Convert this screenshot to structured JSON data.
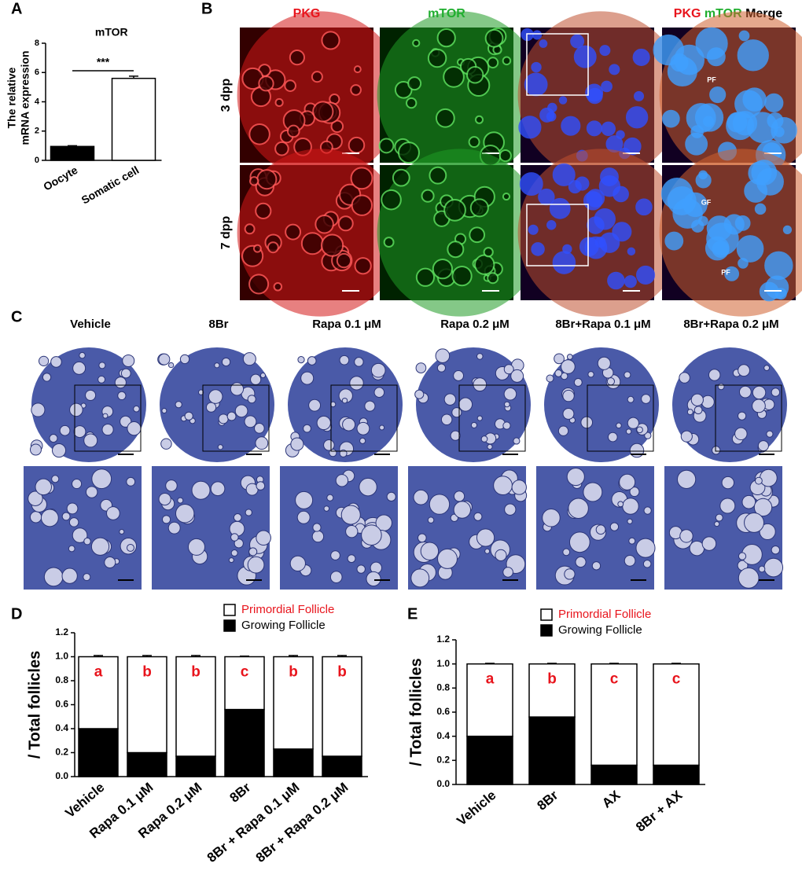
{
  "panel_labels": [
    "A",
    "B",
    "C",
    "D",
    "E"
  ],
  "figure_b": {
    "column_titles": [
      "PKG",
      "mTOR"
    ],
    "merge_title": [
      "PKG",
      "mTOR",
      "Merge"
    ],
    "row_labels": [
      "3 dpp",
      "7 dpp"
    ],
    "annotations": [
      "PF",
      "GF",
      "PF"
    ]
  },
  "figure_c": {
    "column_titles": [
      "Vehicle",
      "8Br",
      "Rapa 0.1 μM",
      "Rapa 0.2 μM",
      "8Br+Rapa 0.1 μM",
      "8Br+Rapa 0.2 μM"
    ]
  },
  "chart_data": [
    {
      "type": "bar",
      "title": "mTOR",
      "y_label": [
        "The relative",
        "mRNA expression"
      ],
      "categories": [
        "Oocyte",
        "Somatic cell"
      ],
      "values": [
        0.95,
        5.6
      ],
      "errors": [
        0.05,
        0.15
      ],
      "colors": [
        "#000000",
        "#ffffff"
      ],
      "annotation": "***",
      "ylim": [
        0,
        8
      ],
      "yticks": [
        0,
        2,
        4,
        6,
        8
      ]
    },
    {
      "type": "stacked_bar",
      "y_label": "/ Total follicles",
      "categories": [
        "Vehicle",
        "Rapa 0.1 μM",
        "Rapa 0.2 μM",
        "8Br",
        "8Br + Rapa 0.1 μM",
        "8Br + Rapa 0.2 μM"
      ],
      "series": [
        {
          "name": "Growing Follicle",
          "color": "#000000",
          "text_color": "#000000",
          "values": [
            0.4,
            0.2,
            0.17,
            0.56,
            0.23,
            0.17
          ],
          "errors": [
            0.01,
            0.02,
            0.02,
            0.005,
            0.01,
            0.02
          ],
          "letters": [
            "a",
            "b",
            "b",
            "c",
            "b",
            "b"
          ]
        },
        {
          "name": "Primordial Follicle",
          "color": "#ffffff",
          "text_color": "#e8141c",
          "values": [
            0.6,
            0.8,
            0.83,
            0.44,
            0.77,
            0.83
          ],
          "errors": [
            0.01,
            0.01,
            0.01,
            0.005,
            0.01,
            0.01
          ],
          "letters": [
            "a",
            "b",
            "b",
            "c",
            "b",
            "b"
          ]
        }
      ],
      "ylim": [
        0,
        1.2
      ],
      "yticks": [
        {
          "value": 0,
          "label": "0.0"
        },
        0.2,
        0.4,
        0.6,
        0.8,
        {
          "value": 1,
          "label": "1.0"
        },
        1.2
      ]
    },
    {
      "type": "stacked_bar",
      "y_label": "/ Total follicles",
      "categories": [
        "Vehicle",
        "8Br",
        "AX",
        "8Br + AX"
      ],
      "series": [
        {
          "name": "Growing Follicle",
          "color": "#000000",
          "text_color": "#000000",
          "values": [
            0.4,
            0.56,
            0.16,
            0.16
          ],
          "errors": [
            0.005,
            0.005,
            0.01,
            0.01
          ],
          "letters": [
            "a",
            "b",
            "c",
            "c"
          ]
        },
        {
          "name": "Primordial Follicle",
          "color": "#ffffff",
          "text_color": "#e8141c",
          "values": [
            0.6,
            0.44,
            0.84,
            0.84
          ],
          "errors": [
            0.005,
            0.005,
            0.005,
            0.005
          ],
          "letters": [
            "a",
            "b",
            "c",
            "c"
          ]
        }
      ],
      "ylim": [
        0,
        1.2
      ],
      "yticks": [
        {
          "value": 0,
          "label": "0.0"
        },
        0.2,
        0.4,
        0.6,
        0.8,
        {
          "value": 1,
          "label": "1.0"
        },
        1.2
      ]
    }
  ]
}
